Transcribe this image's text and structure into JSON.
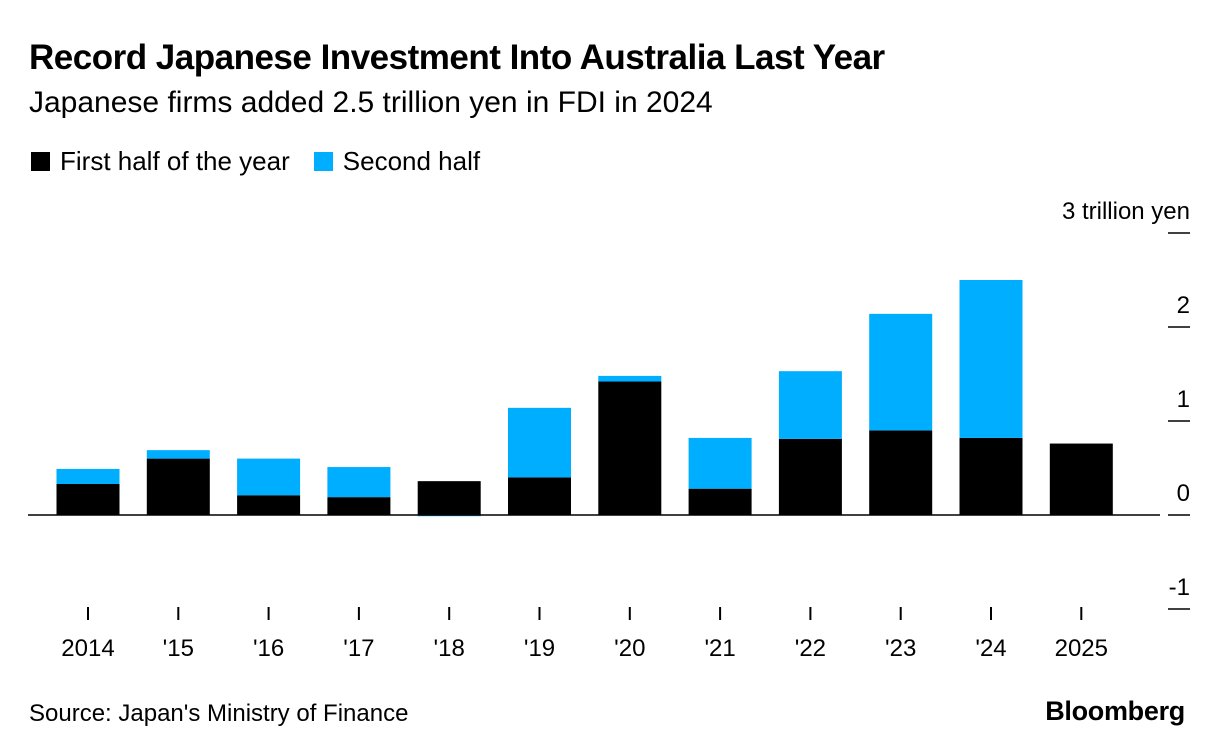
{
  "title": "Record Japanese Investment Into Australia Last Year",
  "subtitle": "Japanese firms added 2.5 trillion yen in FDI in 2024",
  "legend": [
    {
      "label": "First half of the year",
      "color": "#000000"
    },
    {
      "label": "Second half",
      "color": "#00AEFF"
    }
  ],
  "source": "Source: Japan's Ministry of Finance",
  "brand": "Bloomberg",
  "chart_data": {
    "type": "bar",
    "stacked": true,
    "categories": [
      "2014",
      "'15",
      "'16",
      "'17",
      "'18",
      "'19",
      "'20",
      "'21",
      "'22",
      "'23",
      "'24",
      "2025"
    ],
    "series": [
      {
        "name": "First half of the year",
        "color": "#000000",
        "values": [
          0.33,
          0.6,
          0.21,
          0.19,
          0.36,
          0.4,
          1.42,
          0.28,
          0.81,
          0.9,
          0.82,
          0.76
        ]
      },
      {
        "name": "Second half",
        "color": "#00AEFF",
        "values": [
          0.16,
          0.09,
          0.39,
          0.32,
          -0.01,
          0.74,
          0.06,
          0.54,
          0.72,
          1.24,
          1.68,
          null
        ]
      }
    ],
    "y_ticks": [
      {
        "value": 3,
        "label": "3 trillion yen"
      },
      {
        "value": 2,
        "label": "2"
      },
      {
        "value": 1,
        "label": "1"
      },
      {
        "value": 0,
        "label": "0"
      },
      {
        "value": -1,
        "label": "-1"
      }
    ],
    "ylim": [
      -1,
      3
    ],
    "ylabel": "trillion yen",
    "xlabel": "",
    "y_axis_side": "right",
    "legend_position": "top-left"
  }
}
